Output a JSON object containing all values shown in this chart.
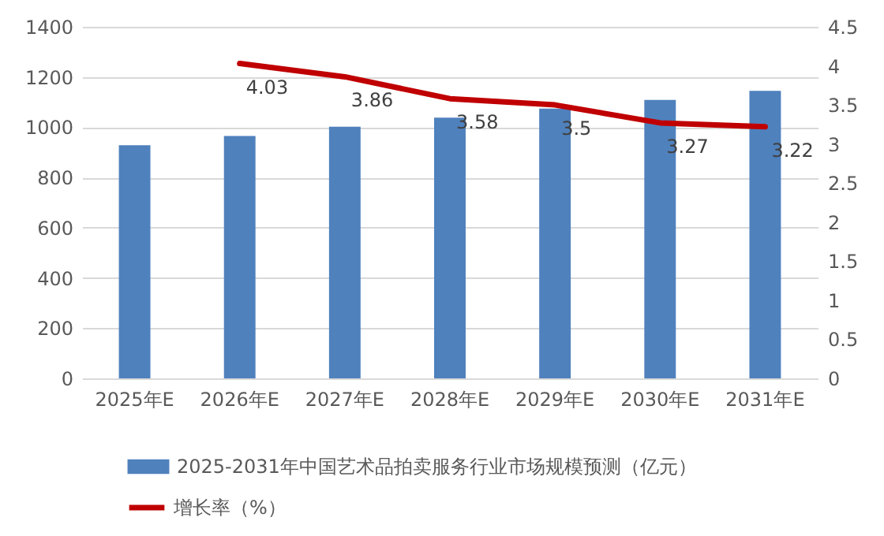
{
  "chart_data": {
    "type": "bar",
    "categories": [
      "2025年E",
      "2026年E",
      "2027年E",
      "2028年E",
      "2029年E",
      "2030年E",
      "2031年E"
    ],
    "series": [
      {
        "name": "2025-2031年中国艺术品拍卖服务行业市场规模预测（亿元）",
        "color": "#4f81bd",
        "values": [
          928,
          965,
          1002,
          1038,
          1074,
          1109,
          1145
        ]
      },
      {
        "name": "增长率（%）",
        "type": "line",
        "axis": "y2",
        "color": "#c00000",
        "values": [
          null,
          4.03,
          3.86,
          3.58,
          3.5,
          3.27,
          3.22
        ],
        "value_labels": [
          null,
          "4.03",
          "3.86",
          "3.58",
          "3.5",
          "3.27",
          "3.22"
        ]
      }
    ],
    "ylim": [
      0,
      1400
    ],
    "yticks": [
      0,
      200,
      400,
      600,
      800,
      1000,
      1200,
      1400
    ],
    "y2lim": [
      0,
      4.5
    ],
    "y2ticks": [
      0,
      0.5,
      1,
      1.5,
      2,
      2.5,
      3,
      3.5,
      4,
      4.5
    ],
    "grid": "y",
    "legend": "bottom",
    "marker": "none",
    "line_style": "solid"
  }
}
